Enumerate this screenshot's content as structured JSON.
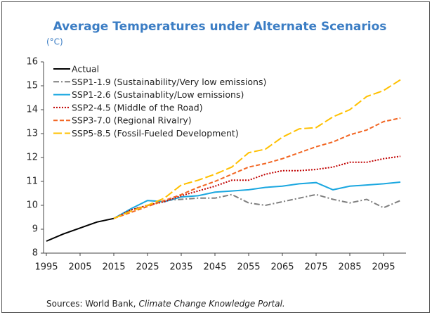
{
  "chart_data": {
    "type": "line",
    "title": "Average Temperatures under Alternate Scenarios",
    "subtitle": "(°C)",
    "source_prefix": "Sources: World Bank,",
    "source_italic": "Climate Change Knowledge Portal.",
    "x": [
      1995,
      2000,
      2005,
      2010,
      2015,
      2020,
      2025,
      2030,
      2035,
      2040,
      2045,
      2050,
      2055,
      2060,
      2065,
      2070,
      2075,
      2080,
      2085,
      2090,
      2095,
      2100
    ],
    "xlim": [
      1995,
      2100
    ],
    "xticks": [
      1995,
      2005,
      2015,
      2025,
      2035,
      2045,
      2055,
      2065,
      2075,
      2085,
      2095
    ],
    "ylim": [
      8,
      16
    ],
    "yticks": [
      8,
      9,
      10,
      11,
      12,
      13,
      14,
      15,
      16
    ],
    "grid": false,
    "legend": "top-left",
    "series": [
      {
        "name": "Actual",
        "color": "#000000",
        "style": "solid",
        "values": [
          8.5,
          8.8,
          9.05,
          9.3,
          9.45,
          null,
          null,
          null,
          null,
          null,
          null,
          null,
          null,
          null,
          null,
          null,
          null,
          null,
          null,
          null,
          null,
          null
        ]
      },
      {
        "name": "SSP1-1.9 (Sustainability/Very low emissions)",
        "color": "#7f7f7f",
        "style": "dashdot",
        "values": [
          null,
          null,
          null,
          null,
          9.45,
          9.8,
          10.0,
          10.2,
          10.25,
          10.3,
          10.3,
          10.45,
          10.1,
          10.0,
          10.15,
          10.3,
          10.45,
          10.25,
          10.1,
          10.25,
          9.9,
          10.2
        ]
      },
      {
        "name": "SSP1-2.6 (Sustainablity/Low emissions)",
        "color": "#1aa7e0",
        "style": "solid",
        "values": [
          null,
          null,
          null,
          null,
          9.45,
          9.85,
          10.2,
          10.15,
          10.35,
          10.4,
          10.55,
          10.6,
          10.65,
          10.75,
          10.8,
          10.9,
          10.95,
          10.65,
          10.8,
          10.85,
          10.9,
          10.97
        ]
      },
      {
        "name": "SSP2-4.5 (Middle of the Road)",
        "color": "#c00000",
        "style": "dotted",
        "values": [
          null,
          null,
          null,
          null,
          9.45,
          9.8,
          10.0,
          10.15,
          10.4,
          10.6,
          10.8,
          11.05,
          11.05,
          11.3,
          11.45,
          11.45,
          11.5,
          11.6,
          11.8,
          11.8,
          11.95,
          12.05
        ]
      },
      {
        "name": "SSP3-7.0 (Regional Rivalry)",
        "color": "#f26522",
        "style": "dashed",
        "values": [
          null,
          null,
          null,
          null,
          9.45,
          9.7,
          9.95,
          10.2,
          10.45,
          10.75,
          11.0,
          11.3,
          11.6,
          11.75,
          11.95,
          12.2,
          12.45,
          12.65,
          12.95,
          13.15,
          13.5,
          13.65
        ]
      },
      {
        "name": "SSP5-8.5 (Fossil-Fueled Development)",
        "color": "#ffc000",
        "style": "longdash",
        "values": [
          null,
          null,
          null,
          null,
          9.45,
          9.75,
          10.0,
          10.3,
          10.85,
          11.05,
          11.3,
          11.6,
          12.2,
          12.35,
          12.85,
          13.2,
          13.25,
          13.7,
          14.0,
          14.55,
          14.8,
          15.25
        ]
      }
    ]
  }
}
